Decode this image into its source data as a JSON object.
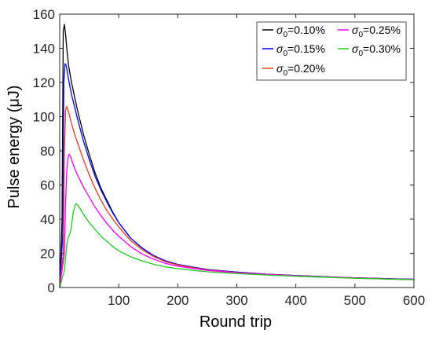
{
  "chart_data": {
    "type": "line",
    "xlabel": "Round trip",
    "ylabel": "Pulse energy (μJ)",
    "xlim": [
      0,
      600
    ],
    "ylim": [
      0,
      160
    ],
    "x_ticks": [
      100,
      200,
      300,
      400,
      500,
      600
    ],
    "y_ticks": [
      0,
      20,
      40,
      60,
      80,
      100,
      120,
      140,
      160
    ],
    "x_tick_labels": [
      "100",
      "200",
      "300",
      "400",
      "500",
      "600"
    ],
    "y_tick_labels": [
      "0",
      "20",
      "40",
      "60",
      "80",
      "100",
      "120",
      "140",
      "160"
    ],
    "grid": false,
    "legend_position": "top-right",
    "series": [
      {
        "name": "σ0=0.10%",
        "symbol": "σ",
        "subscript": "0",
        "value_text": "=0.10%",
        "color": "#000000",
        "x": [
          0,
          4,
          6,
          8,
          10,
          12,
          15,
          20,
          25,
          30,
          40,
          50,
          60,
          70,
          80,
          90,
          100,
          120,
          140,
          160,
          180,
          200,
          250,
          300,
          350,
          400,
          450,
          500,
          550,
          600
        ],
        "y": [
          0,
          40,
          150,
          154,
          148,
          140,
          130,
          120,
          112,
          104,
          90,
          78,
          67,
          58,
          51,
          44,
          38,
          29,
          23,
          18.5,
          15.5,
          13.5,
          10.5,
          9,
          7.8,
          7,
          6.3,
          5.7,
          5.2,
          4.8
        ]
      },
      {
        "name": "σ0=0.15%",
        "symbol": "σ",
        "subscript": "0",
        "value_text": "=0.15%",
        "color": "#0000ff",
        "x": [
          0,
          5,
          7,
          9,
          11,
          13,
          16,
          20,
          25,
          30,
          40,
          50,
          60,
          70,
          80,
          90,
          100,
          120,
          140,
          160,
          180,
          200,
          250,
          300,
          350,
          400,
          450,
          500,
          550,
          600
        ],
        "y": [
          0,
          30,
          120,
          131,
          130,
          126,
          120,
          113,
          106,
          99,
          86,
          75,
          65,
          57,
          50,
          43.5,
          38,
          29,
          23,
          18.5,
          15.5,
          13.5,
          10.5,
          9,
          7.8,
          7,
          6.3,
          5.7,
          5.2,
          4.8
        ]
      },
      {
        "name": "σ0=0.20%",
        "symbol": "σ",
        "subscript": "0",
        "value_text": "=0.20%",
        "color": "#e63c1e",
        "x": [
          0,
          6,
          8,
          10,
          12,
          14,
          17,
          20,
          25,
          30,
          40,
          50,
          60,
          70,
          80,
          90,
          100,
          120,
          140,
          160,
          180,
          200,
          250,
          300,
          350,
          400,
          450,
          500,
          550,
          600
        ],
        "y": [
          0,
          20,
          80,
          104,
          106,
          104,
          100,
          96,
          90,
          85,
          75,
          66,
          58,
          51,
          45,
          40,
          35.5,
          27.5,
          22,
          18,
          15,
          13.2,
          10.3,
          8.8,
          7.7,
          6.9,
          6.2,
          5.6,
          5.1,
          4.7
        ]
      },
      {
        "name": "σ0=0.25%",
        "symbol": "σ",
        "subscript": "0",
        "value_text": "=0.25%",
        "color": "#ff00ff",
        "x": [
          0,
          8,
          10,
          12,
          14,
          16,
          18,
          20,
          25,
          30,
          40,
          50,
          60,
          70,
          80,
          90,
          100,
          120,
          140,
          160,
          180,
          200,
          250,
          300,
          350,
          400,
          450,
          500,
          550,
          600
        ],
        "y": [
          0,
          20,
          50,
          68,
          76,
          78,
          77,
          75,
          70,
          66,
          59,
          53,
          47,
          42,
          37.5,
          33.5,
          30,
          24,
          19.5,
          16.5,
          14,
          12.5,
          10,
          8.6,
          7.6,
          6.8,
          6.1,
          5.5,
          5,
          4.6
        ]
      },
      {
        "name": "σ0=0.30%",
        "symbol": "σ",
        "subscript": "0",
        "value_text": "=0.30%",
        "color": "#22cc22",
        "x": [
          0,
          8,
          12,
          15,
          18,
          20,
          23,
          26,
          28,
          30,
          35,
          40,
          50,
          60,
          70,
          80,
          90,
          100,
          120,
          140,
          160,
          180,
          200,
          250,
          300,
          350,
          400,
          450,
          500,
          550,
          600
        ],
        "y": [
          0,
          10,
          25,
          30,
          32,
          36,
          44,
          48,
          49,
          48.5,
          46,
          43,
          38,
          34,
          30,
          27,
          24,
          21.5,
          18,
          15.5,
          13.5,
          12,
          11,
          9.2,
          8.2,
          7.3,
          6.6,
          6,
          5.4,
          5,
          4.6
        ]
      }
    ]
  }
}
